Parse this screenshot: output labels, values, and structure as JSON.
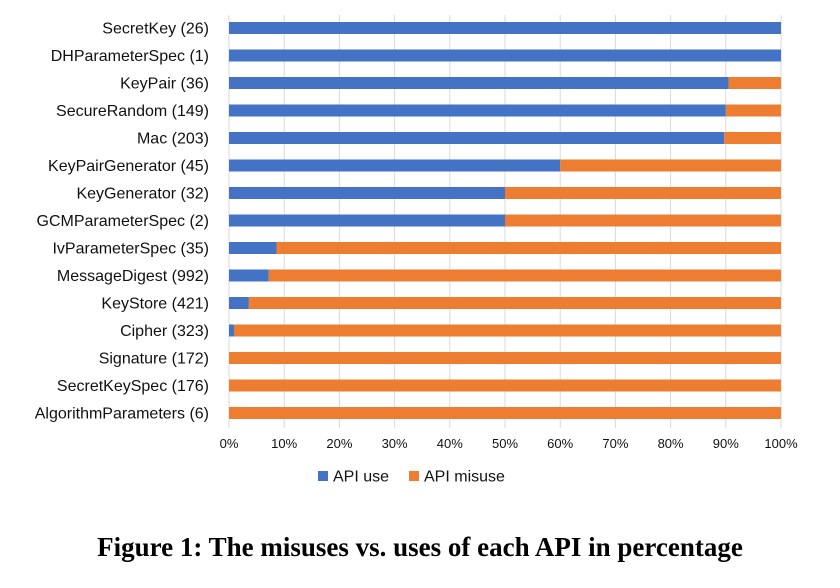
{
  "chart_data": {
    "type": "bar",
    "orientation": "horizontal",
    "stacked": true,
    "categories": [
      "SecretKey (26)",
      "DHParameterSpec (1)",
      "KeyPair (36)",
      "SecureRandom (149)",
      "Mac (203)",
      "KeyPairGenerator (45)",
      "KeyGenerator (32)",
      "GCMParameterSpec (2)",
      "IvParameterSpec (35)",
      "MessageDigest (992)",
      "KeyStore (421)",
      "Cipher (323)",
      "Signature (172)",
      "SecretKeySpec (176)",
      "AlgorithmParameters (6)"
    ],
    "series": [
      {
        "name": "API use",
        "color": "#4472C4",
        "values": [
          100,
          100,
          90.5,
          90,
          89.7,
          60,
          50,
          50,
          8.6,
          7.2,
          3.6,
          0.9,
          0,
          0,
          0
        ]
      },
      {
        "name": "API misuse",
        "color": "#ED7D31",
        "values": [
          0,
          0,
          9.5,
          10,
          10.3,
          40,
          50,
          50,
          91.4,
          92.8,
          96.4,
          99.1,
          100,
          100,
          100
        ]
      }
    ],
    "x_ticks": [
      "0%",
      "10%",
      "20%",
      "30%",
      "40%",
      "50%",
      "60%",
      "70%",
      "80%",
      "90%",
      "100%"
    ],
    "xlim": [
      0,
      100
    ],
    "grid": true,
    "legend_position": "bottom",
    "title": "",
    "xlabel": "",
    "ylabel": ""
  },
  "caption": "Figure 1: The misuses vs. uses of each API in percentage"
}
